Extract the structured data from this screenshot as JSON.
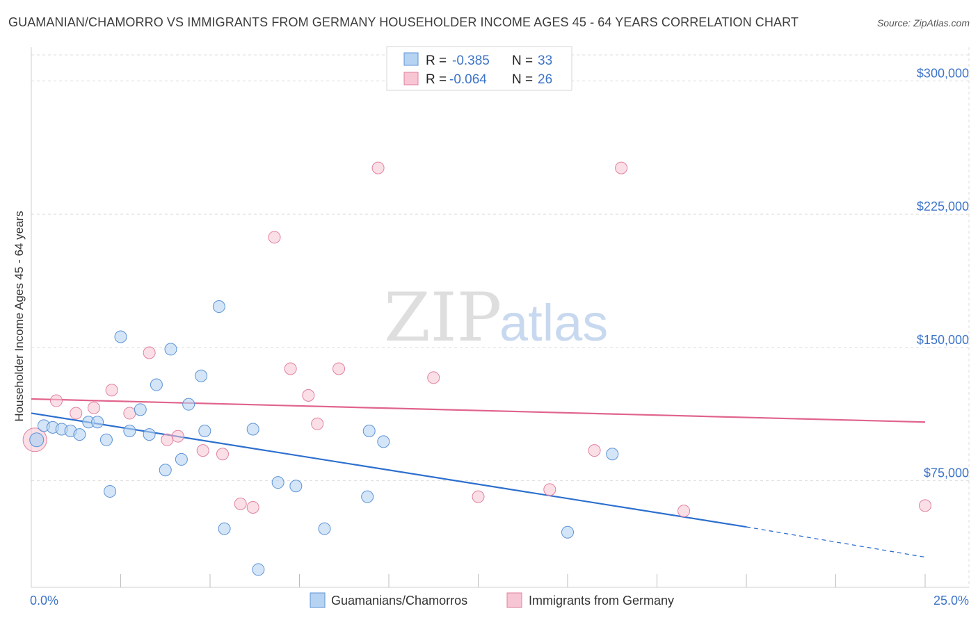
{
  "title": "GUAMANIAN/CHAMORRO VS IMMIGRANTS FROM GERMANY HOUSEHOLDER INCOME AGES 45 - 64 YEARS CORRELATION CHART",
  "source": "Source: ZipAtlas.com",
  "watermark": {
    "zip": "ZIP",
    "atlas": "atlas"
  },
  "colors": {
    "blue_fill": "#b7d3f2",
    "blue_stroke": "#5c93d6",
    "blue_line": "#2c6fce",
    "pink_fill": "#f7c5d4",
    "pink_stroke": "#e2819f",
    "pink_line": "#e0648c",
    "tick_text": "#3d74c8",
    "grid": "#dcdcdc"
  },
  "legend": {
    "r_label": "R =",
    "n_label": "N =",
    "entries": [
      {
        "r_value": "-0.385",
        "n_value": "33",
        "series": "blue"
      },
      {
        "r_value": "-0.064",
        "n_value": "26",
        "series": "pink"
      }
    ]
  },
  "chart_data": {
    "type": "scatter",
    "title": "GUAMANIAN/CHAMORRO VS IMMIGRANTS FROM GERMANY HOUSEHOLDER INCOME AGES 45 - 64 YEARS CORRELATION CHART",
    "xlabel": "",
    "ylabel": "Householder Income Ages 45 - 64 years",
    "xlim": [
      0,
      25
    ],
    "ylim": [
      15000,
      315000
    ],
    "x_tick_labels": [
      "0.0%",
      "25.0%"
    ],
    "y_ticks": [
      75000,
      150000,
      225000,
      300000
    ],
    "y_tick_labels": [
      "$75,000",
      "$150,000",
      "$225,000",
      "$300,000"
    ],
    "grid": true,
    "legend_position": "top-center",
    "series": [
      {
        "name": "Guamanians/Chamorros",
        "color": "blue",
        "r": -0.385,
        "n": 33,
        "points": [
          [
            0.15,
            98000
          ],
          [
            0.35,
            106000
          ],
          [
            0.6,
            105000
          ],
          [
            0.85,
            104000
          ],
          [
            1.1,
            103000
          ],
          [
            1.35,
            101000
          ],
          [
            1.6,
            108000
          ],
          [
            1.85,
            108000
          ],
          [
            2.1,
            98000
          ],
          [
            2.2,
            69000
          ],
          [
            2.5,
            156000
          ],
          [
            2.75,
            103000
          ],
          [
            3.05,
            115000
          ],
          [
            3.3,
            101000
          ],
          [
            3.5,
            129000
          ],
          [
            3.75,
            81000
          ],
          [
            3.9,
            149000
          ],
          [
            4.2,
            87000
          ],
          [
            4.4,
            118000
          ],
          [
            4.75,
            134000
          ],
          [
            4.85,
            103000
          ],
          [
            5.25,
            173000
          ],
          [
            5.4,
            48000
          ],
          [
            6.2,
            104000
          ],
          [
            6.35,
            25000
          ],
          [
            6.9,
            74000
          ],
          [
            7.4,
            72000
          ],
          [
            8.2,
            48000
          ],
          [
            9.4,
            66000
          ],
          [
            9.45,
            103000
          ],
          [
            9.85,
            97000
          ],
          [
            15.0,
            46000
          ],
          [
            16.25,
            90000
          ]
        ],
        "trend": {
          "x": [
            0,
            20
          ],
          "y": [
            113000,
            49000
          ],
          "dashed_to": [
            25,
            32000
          ]
        }
      },
      {
        "name": "Immigrants from Germany",
        "color": "pink",
        "r": -0.064,
        "n": 26,
        "points": [
          [
            0.1,
            98000
          ],
          [
            0.7,
            120000
          ],
          [
            1.25,
            113000
          ],
          [
            1.75,
            116000
          ],
          [
            2.25,
            126000
          ],
          [
            2.75,
            113000
          ],
          [
            3.3,
            147000
          ],
          [
            3.8,
            98000
          ],
          [
            4.1,
            100000
          ],
          [
            4.8,
            92000
          ],
          [
            5.35,
            90000
          ],
          [
            5.85,
            62000
          ],
          [
            6.2,
            60000
          ],
          [
            6.8,
            212000
          ],
          [
            7.25,
            138000
          ],
          [
            7.75,
            123000
          ],
          [
            8.0,
            107000
          ],
          [
            8.6,
            138000
          ],
          [
            9.7,
            251000
          ],
          [
            11.25,
            133000
          ],
          [
            12.5,
            66000
          ],
          [
            14.5,
            70000
          ],
          [
            15.75,
            92000
          ],
          [
            16.5,
            251000
          ],
          [
            18.25,
            58000
          ],
          [
            25.0,
            61000
          ]
        ],
        "trend": {
          "x": [
            0,
            25
          ],
          "y": [
            121000,
            108000
          ]
        }
      }
    ]
  }
}
